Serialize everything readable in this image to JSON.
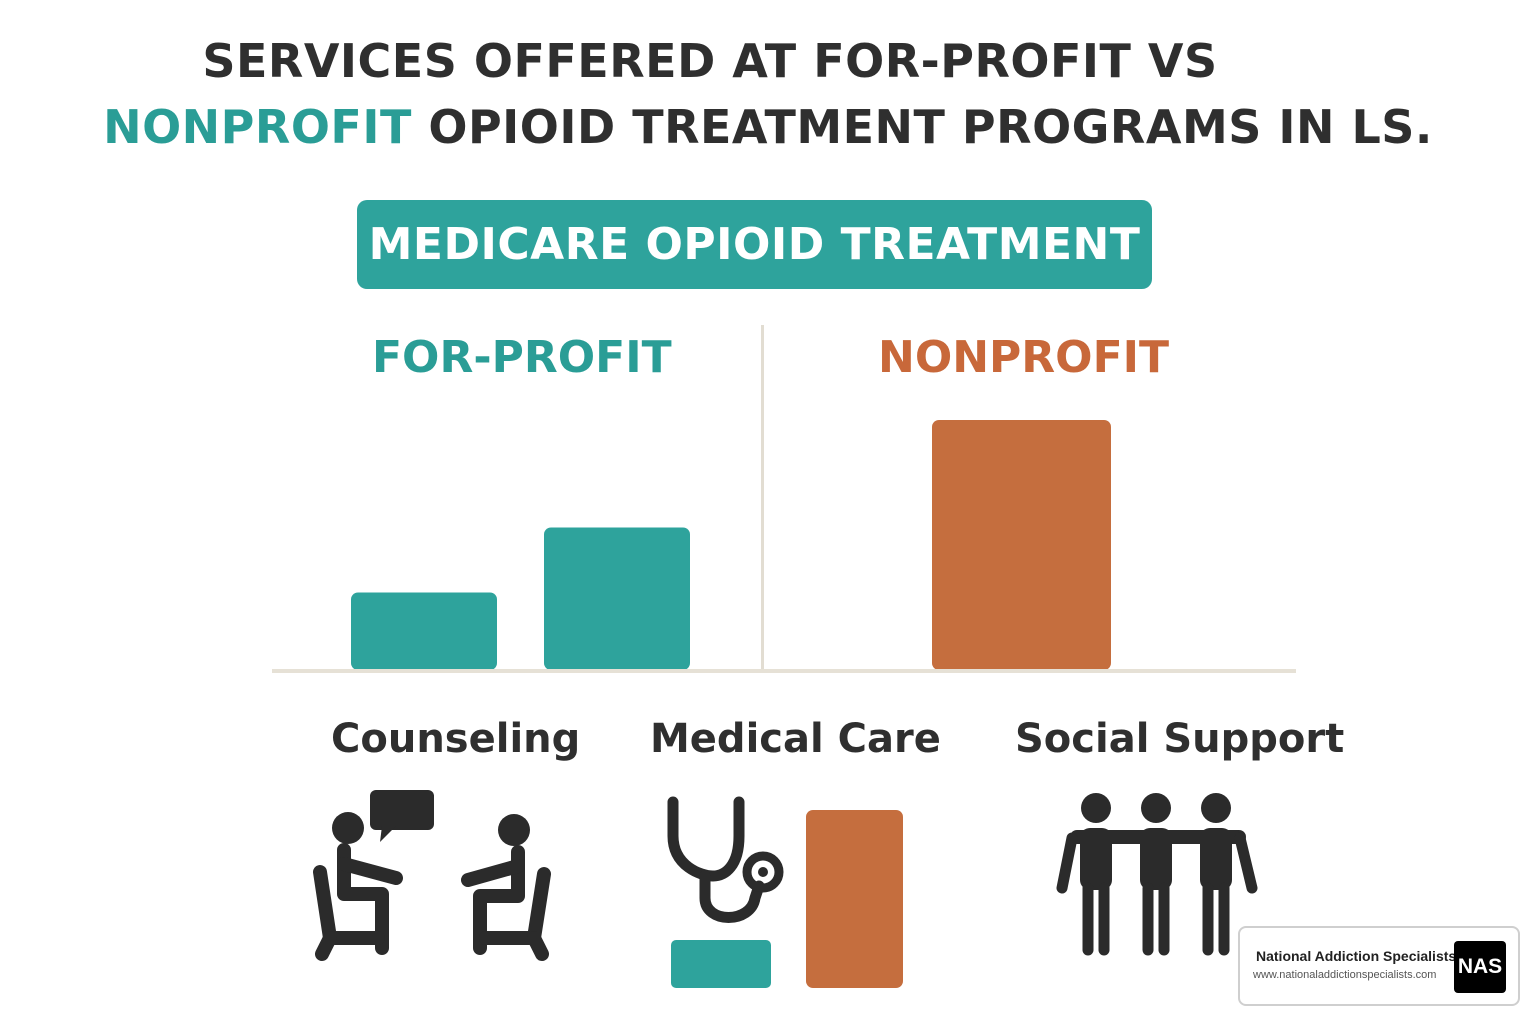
{
  "title": {
    "line1": "SERVICES OFFERED AT FOR-PROFIT VS",
    "line2_highlight": "NONPROFIT",
    "line2_rest": " OPIOID TREATMENT PROGRAMS IN LS."
  },
  "banner": "MEDICARE OPIOID TREATMENT",
  "chart_data": {
    "type": "bar",
    "groups": [
      "FOR-PROFIT",
      "NONPROFIT"
    ],
    "series": [
      {
        "group": "FOR-PROFIT",
        "values": [
          0.31,
          0.57
        ]
      },
      {
        "group": "NONPROFIT",
        "values": [
          1.0
        ]
      }
    ],
    "ylim": [
      0,
      1
    ],
    "grid": false
  },
  "services": [
    {
      "label": "Counseling",
      "icon": "counseling-icon"
    },
    {
      "label": "Medical Care",
      "icon": "stethoscope-icon"
    },
    {
      "label": "Social Support",
      "icon": "people-group-icon"
    }
  ],
  "watermark": {
    "name": "National Addiction Specialists",
    "url": "www.nationaladdictionspecialists.com",
    "logo": "NAS"
  },
  "colors": {
    "teal": "#2ea39c",
    "orange": "#c56e3e",
    "dark": "#2b2b2b"
  }
}
